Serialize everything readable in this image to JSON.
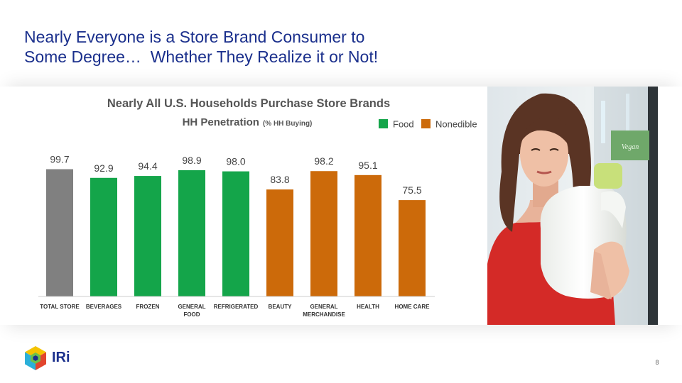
{
  "slide": {
    "title_line1": "Nearly Everyone is a Store Brand Consumer to",
    "title_line2": "Some Degree…  Whether They Realize it or Not!",
    "page_number": "8"
  },
  "logo": {
    "text": "IRi"
  },
  "photo": {
    "sign_text": "Vegan"
  },
  "chart_data": {
    "type": "bar",
    "title": "Nearly All U.S. Households Purchase Store Brands",
    "subtitle_main": "HH Penetration",
    "subtitle_note": "(% HH Buying)",
    "categories": [
      [
        "TOTAL STORE"
      ],
      [
        "BEVERAGES"
      ],
      [
        "FROZEN"
      ],
      [
        "GENERAL",
        "FOOD"
      ],
      [
        "REFRIGERATED"
      ],
      [
        "BEAUTY"
      ],
      [
        "GENERAL",
        "MERCHANDISE"
      ],
      [
        "HEALTH"
      ],
      [
        "HOME CARE"
      ]
    ],
    "values": [
      99.7,
      92.9,
      94.4,
      98.9,
      98.0,
      83.8,
      98.2,
      95.1,
      75.5
    ],
    "value_labels": [
      "99.7",
      "92.9",
      "94.4",
      "98.9",
      "98.0",
      "83.8",
      "98.2",
      "95.1",
      "75.5"
    ],
    "groups": [
      "total",
      "food",
      "food",
      "food",
      "food",
      "nonedible",
      "nonedible",
      "nonedible",
      "nonedible"
    ],
    "legend": [
      {
        "key": "food",
        "label": "Food",
        "color": "#14a54a"
      },
      {
        "key": "nonedible",
        "label": "Nonedible",
        "color": "#cc6a0a"
      }
    ],
    "colors": {
      "total": "#808080",
      "food": "#14a54a",
      "nonedible": "#cc6a0a"
    },
    "ylim": [
      0,
      100
    ],
    "grid": false,
    "legend_position": "top-right"
  }
}
